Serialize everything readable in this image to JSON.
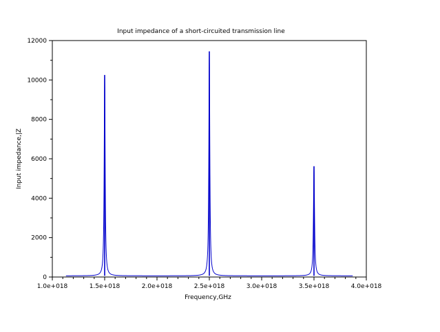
{
  "chart_data": {
    "type": "line",
    "title": "Input impedance of a short-circuited transmission line",
    "xlabel": "Frequency,GHz",
    "ylabel": "Input impedance,|Z",
    "xlim": [
      1e+18,
      4e+18
    ],
    "ylim": [
      0,
      12000
    ],
    "xticks": [
      1e+18,
      1.5e+18,
      2e+18,
      2.5e+18,
      3e+18,
      3.5e+18,
      4e+18
    ],
    "xtick_labels": [
      "1.0e+018",
      "1.5e+018",
      "2.0e+018",
      "2.5e+018",
      "3.0e+018",
      "3.5e+018",
      "4.0e+018"
    ],
    "yticks": [
      0,
      2000,
      4000,
      6000,
      8000,
      10000,
      12000
    ],
    "ytick_labels": [
      "0",
      "2000",
      "4000",
      "6000",
      "8000",
      "10000",
      "12000"
    ],
    "grid": false,
    "series": [
      {
        "color": "#0000cc",
        "x_range": [
          1.13e+18,
          3.87e+18
        ],
        "baseline": 60,
        "peaks": [
          {
            "x": 1.5e+18,
            "y": 10250,
            "half_width": 5500000000000000.0
          },
          {
            "x": 2.5e+18,
            "y": 11450,
            "half_width": 5500000000000000.0
          },
          {
            "x": 3.5e+18,
            "y": 5620,
            "half_width": 6000000000000000.0
          }
        ]
      }
    ]
  }
}
